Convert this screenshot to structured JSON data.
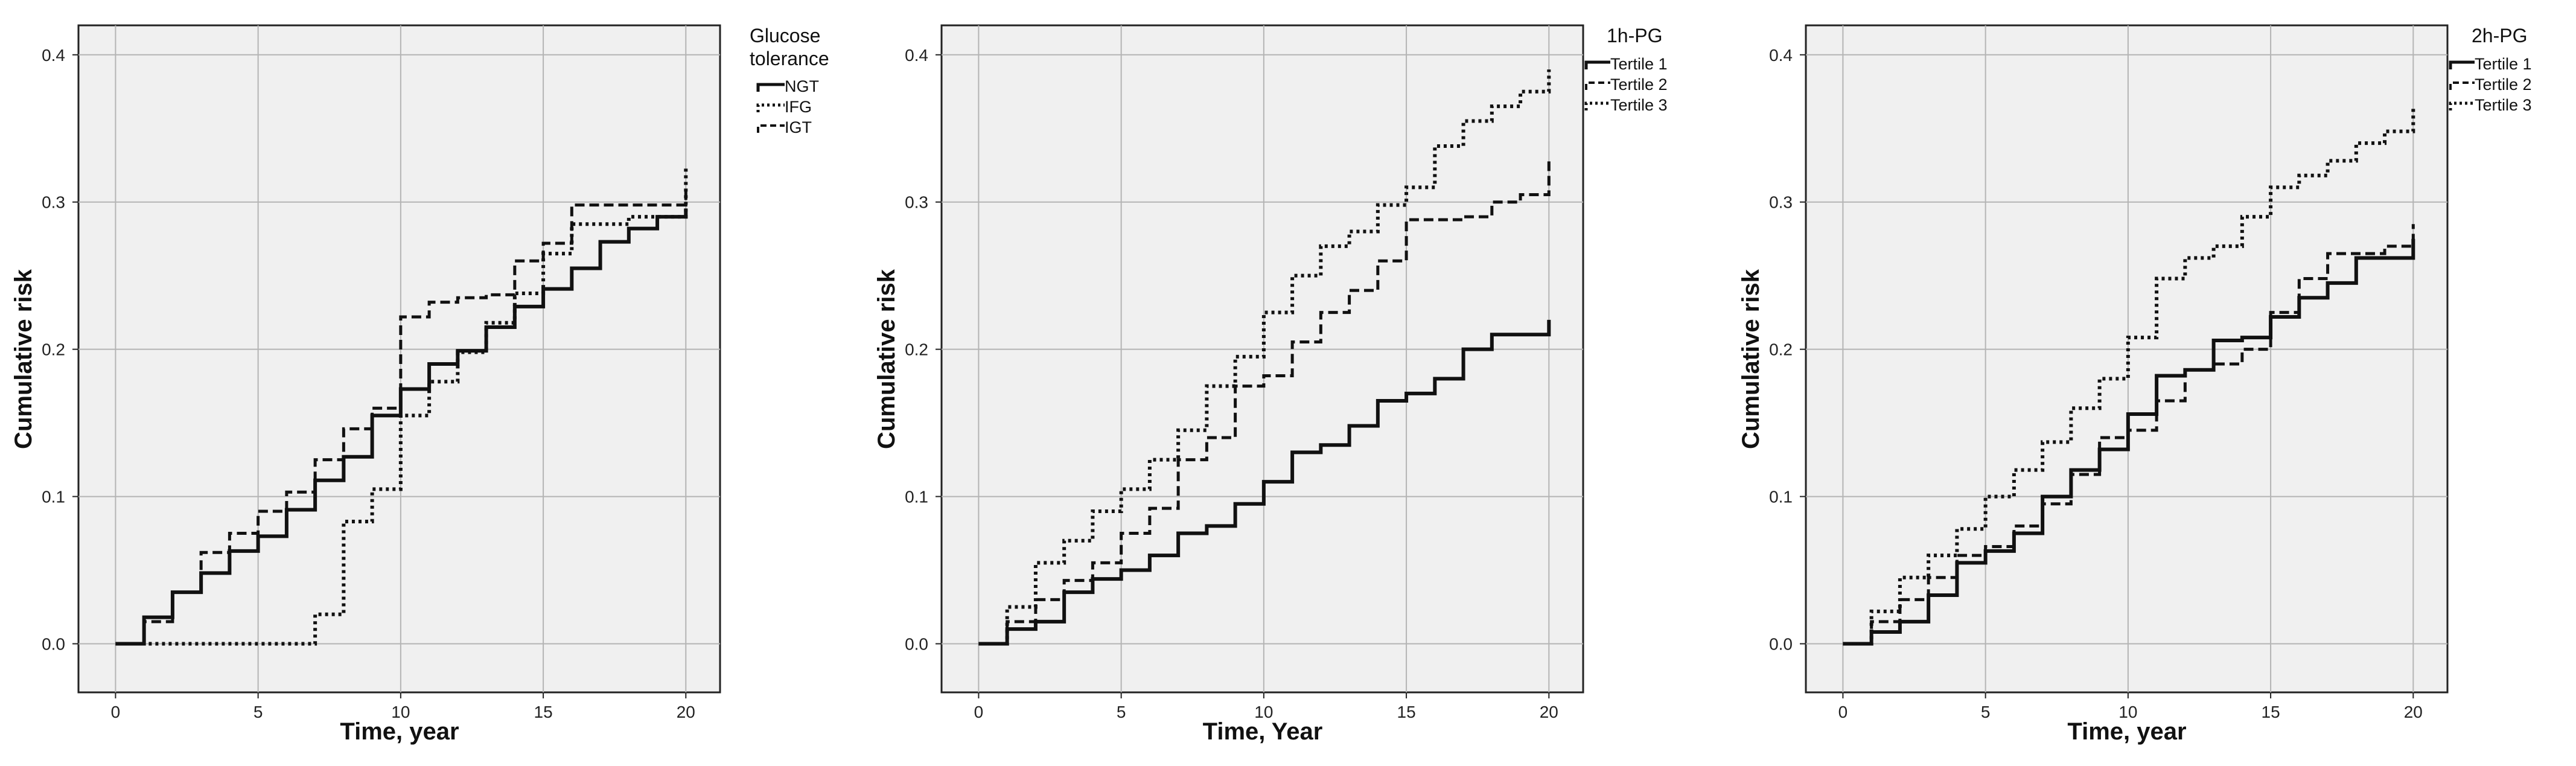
{
  "chart_data": [
    {
      "type": "line",
      "step": true,
      "xlabel": "Time, year",
      "ylabel": "Cumulative risk",
      "xlim": [
        -1.3,
        21.2
      ],
      "ylim": [
        -0.033,
        0.42
      ],
      "xticks": [
        0,
        5,
        10,
        15,
        20
      ],
      "yticks": [
        0.0,
        0.1,
        0.2,
        0.3,
        0.4
      ],
      "xtick_labels": [
        "0",
        "5",
        "10",
        "15",
        "20"
      ],
      "ytick_labels": [
        "0.0",
        "0.1",
        "0.2",
        "0.3",
        "0.4"
      ],
      "grid": true,
      "legend_title": "Glucose tolerance",
      "legend_title_lines": [
        "Glucose",
        "tolerance"
      ],
      "legend_position": "top-right-outside",
      "series": [
        {
          "name": "NGT",
          "style": "solid",
          "x": [
            0,
            1,
            2,
            3,
            4,
            5,
            6,
            7,
            8,
            9,
            10,
            11,
            12,
            13,
            14,
            15,
            16,
            17,
            18,
            19,
            20,
            20
          ],
          "y": [
            0,
            0.018,
            0.035,
            0.048,
            0.063,
            0.073,
            0.091,
            0.111,
            0.127,
            0.155,
            0.173,
            0.19,
            0.199,
            0.215,
            0.229,
            0.241,
            0.255,
            0.273,
            0.282,
            0.29,
            0.295,
            0.295
          ]
        },
        {
          "name": "IFG",
          "style": "dotted",
          "x": [
            0,
            7,
            8,
            9,
            10,
            11,
            12,
            13,
            14,
            15,
            16,
            17,
            18,
            19,
            20,
            20
          ],
          "y": [
            0,
            0.02,
            0.083,
            0.105,
            0.155,
            0.178,
            0.198,
            0.218,
            0.238,
            0.265,
            0.285,
            0.285,
            0.29,
            0.29,
            0.3,
            0.325
          ]
        },
        {
          "name": "IGT",
          "style": "dashed",
          "x": [
            0,
            1,
            2,
            3,
            4,
            5,
            6,
            7,
            8,
            9,
            10,
            11,
            12,
            13,
            14,
            15,
            16,
            17,
            18,
            19,
            20,
            20
          ],
          "y": [
            0,
            0.015,
            0.035,
            0.062,
            0.075,
            0.09,
            0.103,
            0.125,
            0.146,
            0.16,
            0.222,
            0.232,
            0.235,
            0.237,
            0.26,
            0.272,
            0.298,
            0.298,
            0.298,
            0.298,
            0.3,
            0.31
          ]
        }
      ]
    },
    {
      "type": "line",
      "step": true,
      "xlabel": "Time, Year",
      "ylabel": "Cumulative risk",
      "xlim": [
        -1.3,
        21.2
      ],
      "ylim": [
        -0.033,
        0.42
      ],
      "xticks": [
        0,
        5,
        10,
        15,
        20
      ],
      "yticks": [
        0.0,
        0.1,
        0.2,
        0.3,
        0.4
      ],
      "xtick_labels": [
        "0",
        "5",
        "10",
        "15",
        "20"
      ],
      "ytick_labels": [
        "0.0",
        "0.1",
        "0.2",
        "0.3",
        "0.4"
      ],
      "grid": true,
      "legend_title": "1h-PG",
      "legend_title_lines": [
        "1h-PG"
      ],
      "legend_position": "top-right-outside",
      "series": [
        {
          "name": "Tertile 1",
          "style": "solid",
          "x": [
            0,
            1,
            2,
            3,
            4,
            5,
            6,
            7,
            8,
            9,
            10,
            11,
            12,
            13,
            14,
            15,
            16,
            17,
            18,
            19,
            20,
            20
          ],
          "y": [
            0,
            0.01,
            0.015,
            0.035,
            0.044,
            0.05,
            0.06,
            0.075,
            0.08,
            0.095,
            0.11,
            0.13,
            0.135,
            0.148,
            0.165,
            0.17,
            0.18,
            0.2,
            0.21,
            0.21,
            0.21,
            0.22
          ]
        },
        {
          "name": "Tertile 2",
          "style": "dashed",
          "x": [
            0,
            1,
            2,
            3,
            4,
            5,
            6,
            7,
            8,
            9,
            10,
            11,
            12,
            13,
            14,
            15,
            16,
            17,
            18,
            19,
            20,
            20
          ],
          "y": [
            0,
            0.015,
            0.03,
            0.043,
            0.055,
            0.075,
            0.092,
            0.125,
            0.14,
            0.175,
            0.182,
            0.205,
            0.225,
            0.24,
            0.26,
            0.288,
            0.288,
            0.29,
            0.3,
            0.305,
            0.31,
            0.33
          ]
        },
        {
          "name": "Tertile 3",
          "style": "dotted",
          "x": [
            0,
            1,
            2,
            3,
            4,
            5,
            6,
            7,
            8,
            9,
            10,
            11,
            12,
            13,
            14,
            15,
            16,
            17,
            18,
            19,
            20,
            20
          ],
          "y": [
            0,
            0.025,
            0.055,
            0.07,
            0.09,
            0.105,
            0.125,
            0.145,
            0.175,
            0.195,
            0.225,
            0.25,
            0.27,
            0.28,
            0.298,
            0.31,
            0.338,
            0.355,
            0.365,
            0.375,
            0.38,
            0.39
          ]
        }
      ]
    },
    {
      "type": "line",
      "step": true,
      "xlabel": "Time, year",
      "ylabel": "Cumulative risk",
      "xlim": [
        -1.3,
        21.2
      ],
      "ylim": [
        -0.033,
        0.42
      ],
      "xticks": [
        0,
        5,
        10,
        15,
        20
      ],
      "yticks": [
        0.0,
        0.1,
        0.2,
        0.3,
        0.4
      ],
      "xtick_labels": [
        "0",
        "5",
        "10",
        "15",
        "20"
      ],
      "ytick_labels": [
        "0.0",
        "0.1",
        "0.2",
        "0.3",
        "0.4"
      ],
      "grid": true,
      "legend_title": "2h-PG",
      "legend_title_lines": [
        "2h-PG"
      ],
      "legend_position": "top-right-outside",
      "series": [
        {
          "name": "Tertile 1",
          "style": "solid",
          "x": [
            0,
            1,
            2,
            3,
            4,
            5,
            6,
            7,
            8,
            9,
            10,
            11,
            12,
            13,
            14,
            15,
            16,
            17,
            18,
            19,
            20,
            20
          ],
          "y": [
            0,
            0.008,
            0.015,
            0.033,
            0.055,
            0.063,
            0.075,
            0.1,
            0.118,
            0.132,
            0.156,
            0.182,
            0.186,
            0.206,
            0.208,
            0.222,
            0.235,
            0.245,
            0.262,
            0.262,
            0.262,
            0.275
          ]
        },
        {
          "name": "Tertile 2",
          "style": "dashed",
          "x": [
            0,
            1,
            2,
            3,
            4,
            5,
            6,
            7,
            8,
            9,
            10,
            11,
            12,
            13,
            14,
            15,
            16,
            17,
            18,
            19,
            20,
            20
          ],
          "y": [
            0,
            0.015,
            0.03,
            0.045,
            0.06,
            0.066,
            0.08,
            0.095,
            0.115,
            0.14,
            0.145,
            0.165,
            0.186,
            0.19,
            0.2,
            0.225,
            0.248,
            0.265,
            0.265,
            0.27,
            0.28,
            0.285
          ]
        },
        {
          "name": "Tertile 3",
          "style": "dotted",
          "x": [
            0,
            1,
            2,
            3,
            4,
            5,
            6,
            7,
            8,
            9,
            10,
            11,
            12,
            13,
            14,
            15,
            16,
            17,
            18,
            19,
            20,
            20
          ],
          "y": [
            0,
            0.022,
            0.045,
            0.06,
            0.078,
            0.1,
            0.118,
            0.137,
            0.16,
            0.18,
            0.208,
            0.248,
            0.262,
            0.27,
            0.29,
            0.31,
            0.318,
            0.328,
            0.34,
            0.348,
            0.355,
            0.365
          ]
        }
      ]
    }
  ]
}
